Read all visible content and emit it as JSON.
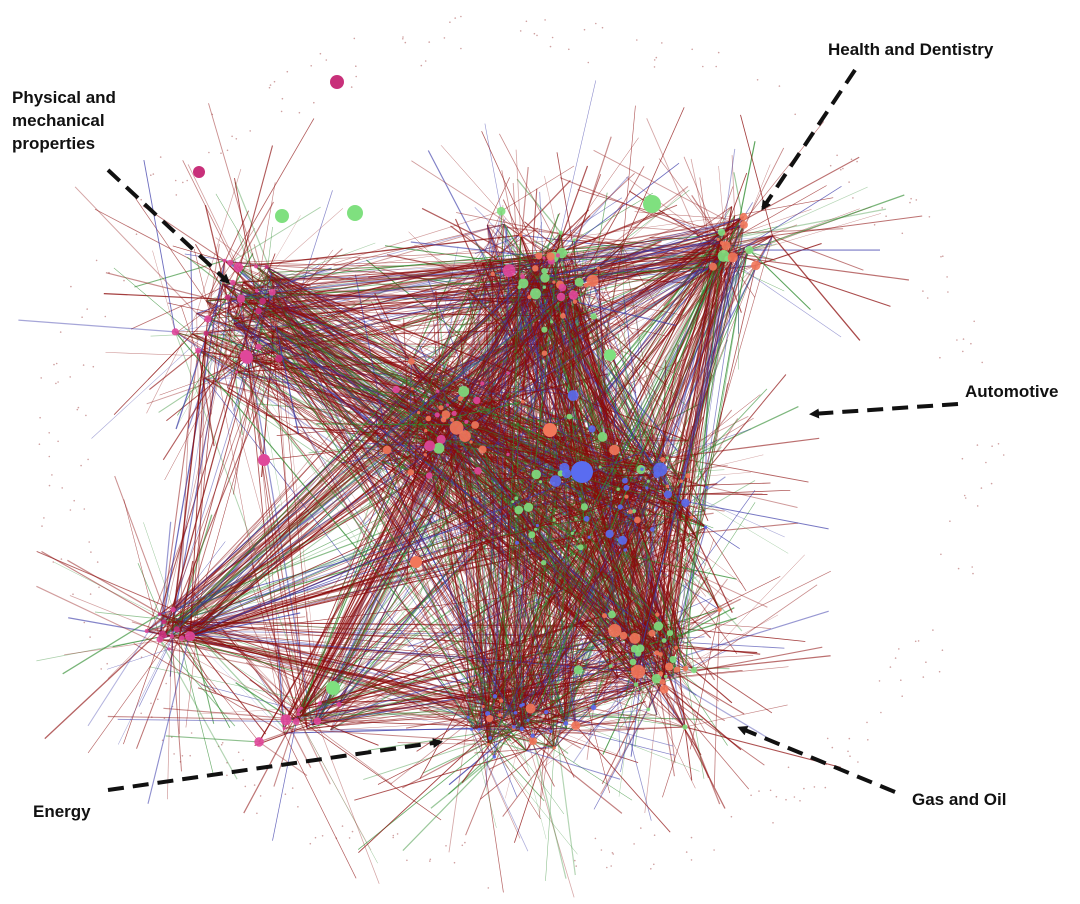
{
  "annotations": [
    {
      "id": "health",
      "label": "Health and Dentistry"
    },
    {
      "id": "physical",
      "label": "Physical and\nmechanical\nproperties"
    },
    {
      "id": "automotive",
      "label": "Automotive"
    },
    {
      "id": "energy",
      "label": "Energy"
    },
    {
      "id": "gas",
      "label": "Gas and Oil"
    }
  ],
  "colors": {
    "edge_dominant": "#8b0a0a",
    "edge_green": "#2e8b2e",
    "edge_blue": "#3a3aa8",
    "node_pink": "#e0479a",
    "node_magenta": "#c8307a",
    "node_green": "#7fe07f",
    "node_blue": "#5a6cf0",
    "node_salmon": "#f2775a",
    "node_teal": "#4fd1b0",
    "arrow": "#111111"
  }
}
